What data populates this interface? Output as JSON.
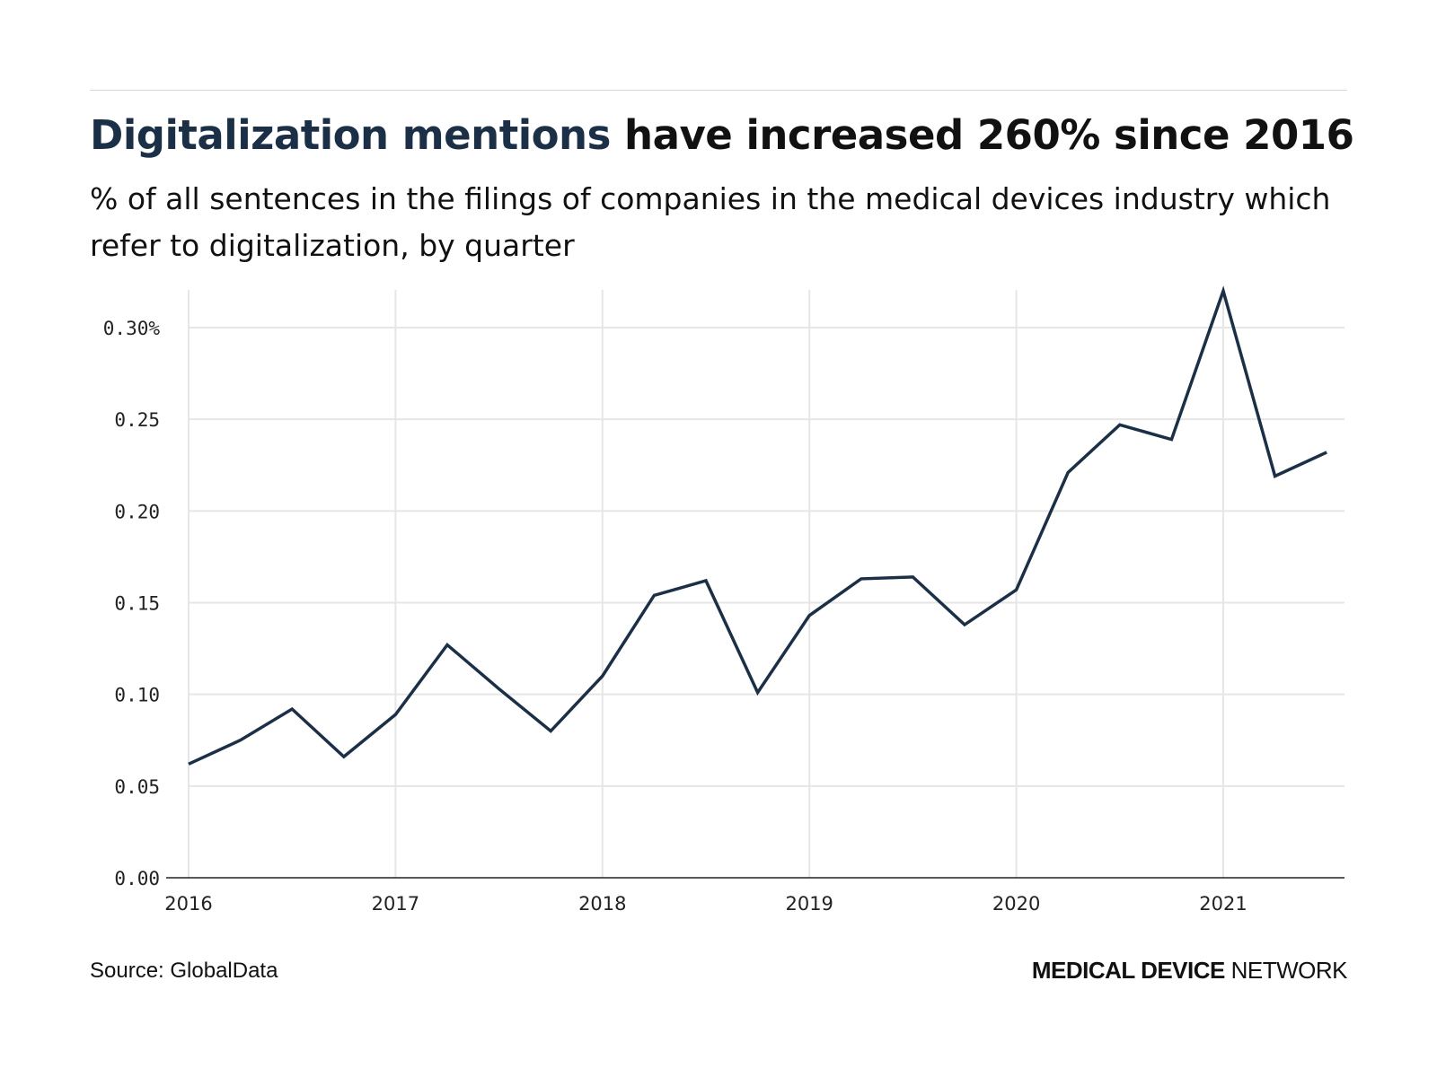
{
  "title": {
    "highlight": "Digitalization mentions",
    "rest": " have increased 260% since 2016"
  },
  "subtitle": "% of all sentences in the filings of companies in the medical devices industry which refer to digitalization, by quarter",
  "source": "Source: GlobalData",
  "brand": {
    "bold": "MEDICAL DEVICE",
    "light": "NETWORK"
  },
  "colors": {
    "line": "#1b3047",
    "highlight": "#1b3047",
    "grid": "#e6e6e6"
  },
  "chart_data": {
    "type": "line",
    "title": "Digitalization mentions have increased 260% since 2016",
    "xlabel": "",
    "ylabel": "",
    "ylim": [
      0,
      0.32
    ],
    "xlim": [
      2016,
      2021.5
    ],
    "grid": true,
    "y_ticks": [
      "0.00",
      "0.05",
      "0.10",
      "0.15",
      "0.20",
      "0.25",
      "0.30%"
    ],
    "x_ticks": [
      "2016",
      "2017",
      "2018",
      "2019",
      "2020",
      "2021"
    ],
    "x": [
      "2016 Q1",
      "2016 Q2",
      "2016 Q3",
      "2016 Q4",
      "2017 Q1",
      "2017 Q2",
      "2017 Q3",
      "2017 Q4",
      "2018 Q1",
      "2018 Q2",
      "2018 Q3",
      "2018 Q4",
      "2019 Q1",
      "2019 Q2",
      "2019 Q3",
      "2019 Q4",
      "2020 Q1",
      "2020 Q2",
      "2020 Q3",
      "2020 Q4",
      "2021 Q1",
      "2021 Q2",
      "2021 Q3"
    ],
    "series": [
      {
        "values": [
          0.062,
          0.075,
          0.092,
          0.066,
          0.089,
          0.127,
          0.103,
          0.08,
          0.11,
          0.154,
          0.162,
          0.101,
          0.143,
          0.163,
          0.164,
          0.138,
          0.157,
          0.221,
          0.247,
          0.239,
          0.32,
          0.219,
          0.232
        ]
      }
    ]
  }
}
